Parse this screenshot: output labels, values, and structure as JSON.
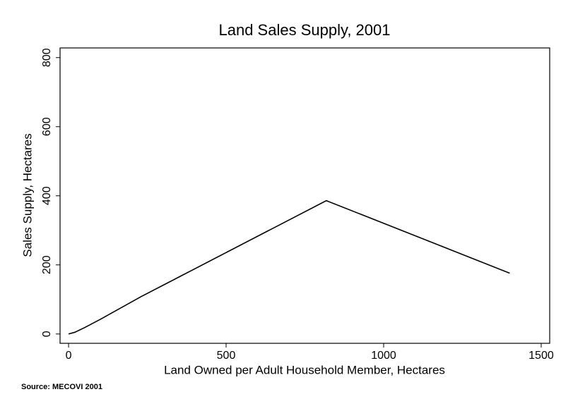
{
  "chart_data": {
    "type": "line",
    "title": "Land Sales Supply, 2001",
    "x_label": "Land Owned per Adult Household Member, Hectares",
    "y_label": "Sales Supply, Hectares",
    "source": "Source: MECOVI 2001",
    "x": [
      0,
      20,
      50,
      100,
      230,
      818,
      1400
    ],
    "series": [
      {
        "name": "Sales Supply",
        "color": "#000000",
        "values": [
          0,
          5,
          18,
          42,
          108,
          386,
          176
        ]
      }
    ],
    "xlim": [
      -27,
      1527
    ],
    "ylim": [
      -27,
      828
    ],
    "xticks": [
      0,
      500,
      1000,
      1500
    ],
    "yticks": [
      0,
      200,
      400,
      600,
      800
    ]
  }
}
